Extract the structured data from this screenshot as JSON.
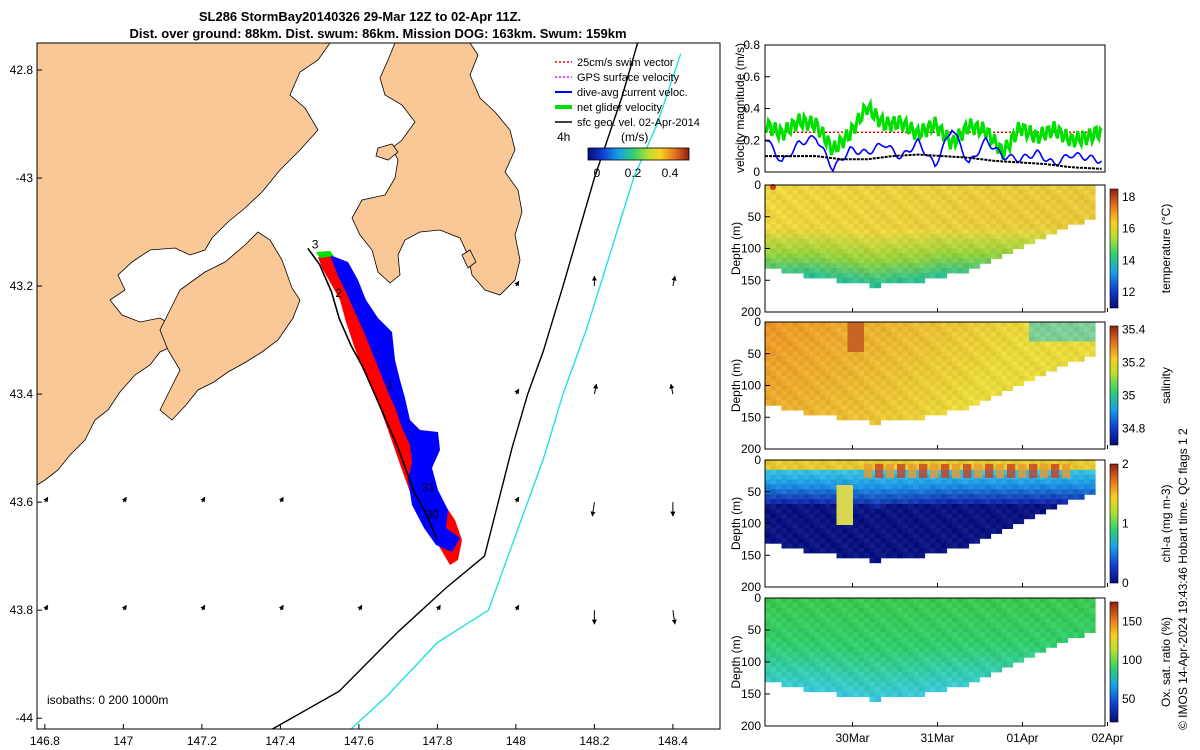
{
  "title": {
    "line1": "SL286 StormBay20140326 29-Mar 12Z to 02-Apr 11Z.",
    "line2": "Dist. over ground: 88km. Dist. swum: 86km. Mission DOG: 163km. Swum: 159km"
  },
  "footer": "© IMOS 14-Apr-2024 19:43:46 Hobart time. QC flags 1  2",
  "colors": {
    "land": "#f9c896",
    "swim": "#ff0000",
    "gps": "#ff00ff",
    "dive": "#0000ff",
    "net": "#00e000",
    "sfc": "#000000",
    "isobath200": "#000000",
    "isobath1000": "#26e0e0"
  },
  "chart_data": [
    {
      "type": "map",
      "xlim": [
        146.78,
        148.52
      ],
      "ylim": [
        -44.02,
        -42.75
      ],
      "x_ticks": [
        146.8,
        147,
        147.2,
        147.4,
        147.6,
        147.8,
        148,
        148.2,
        148.4
      ],
      "x_tick_labels": [
        "146.8",
        "147",
        "147.2",
        "147.4",
        "147.6",
        "147.8",
        "148",
        "148.2",
        "148.4"
      ],
      "y_ticks": [
        -42.8,
        -43,
        -43.2,
        -43.4,
        -43.6,
        -43.8,
        -44
      ],
      "y_tick_labels": [
        "42.8",
        "-43",
        "43.2",
        "43.4",
        "43.6",
        "43.8",
        "-44"
      ],
      "legend": [
        {
          "label": "25cm/s swim vector",
          "color": "#ff0000",
          "style": "dotted-arrow"
        },
        {
          "label": "GPS surface velocity",
          "color": "#ff00ff",
          "style": "dotted-arrow"
        },
        {
          "label": "dive-avg current veloc.",
          "color": "#0000ff",
          "style": "arrow"
        },
        {
          "label": "net glider velocity",
          "color": "#00e000",
          "style": "thick-arrow"
        },
        {
          "label": "sfc geo. vel. 02-Apr-2014",
          "color": "#000000",
          "style": "arrow"
        }
      ],
      "legend_extra": "4h",
      "colorbar": {
        "label": "(m/s)",
        "ticks": [
          "0",
          "0.2",
          "0.4"
        ],
        "range": [
          0,
          0.5
        ]
      },
      "day_labels": [
        {
          "text": "3",
          "lon": 147.48,
          "lat": -43.13
        },
        {
          "text": "2",
          "lon": 147.54,
          "lat": -43.22
        },
        {
          "text": "1",
          "lon": 147.67,
          "lat": -43.39
        },
        {
          "text": "31",
          "lon": 147.76,
          "lat": -43.58
        },
        {
          "text": "30",
          "lon": 147.77,
          "lat": -43.63
        }
      ],
      "isobath_label": "isobaths: 0   200  1000m",
      "track": [
        {
          "lon": 147.47,
          "lat": -43.13
        },
        {
          "lon": 147.5,
          "lat": -43.16
        },
        {
          "lon": 147.53,
          "lat": -43.21
        },
        {
          "lon": 147.55,
          "lat": -43.26
        },
        {
          "lon": 147.58,
          "lat": -43.31
        },
        {
          "lon": 147.61,
          "lat": -43.35
        },
        {
          "lon": 147.64,
          "lat": -43.4
        },
        {
          "lon": 147.67,
          "lat": -43.45
        },
        {
          "lon": 147.7,
          "lat": -43.5
        },
        {
          "lon": 147.72,
          "lat": -43.54
        },
        {
          "lon": 147.74,
          "lat": -43.58
        },
        {
          "lon": 147.77,
          "lat": -43.62
        },
        {
          "lon": 147.8,
          "lat": -43.67
        }
      ],
      "isobath_200": [
        {
          "lon": 147.38,
          "lat": -44.02
        },
        {
          "lon": 147.55,
          "lat": -43.95
        },
        {
          "lon": 147.7,
          "lat": -43.84
        },
        {
          "lon": 147.82,
          "lat": -43.76
        },
        {
          "lon": 147.92,
          "lat": -43.7
        },
        {
          "lon": 147.99,
          "lat": -43.5
        },
        {
          "lon": 148.03,
          "lat": -43.4
        },
        {
          "lon": 148.07,
          "lat": -43.32
        },
        {
          "lon": 148.12,
          "lat": -43.2
        },
        {
          "lon": 148.2,
          "lat": -43.0
        },
        {
          "lon": 148.27,
          "lat": -42.85
        },
        {
          "lon": 148.31,
          "lat": -42.75
        }
      ],
      "isobath_1000": [
        {
          "lon": 147.58,
          "lat": -44.02
        },
        {
          "lon": 147.67,
          "lat": -43.96
        },
        {
          "lon": 147.8,
          "lat": -43.86
        },
        {
          "lon": 147.93,
          "lat": -43.8
        },
        {
          "lon": 148.0,
          "lat": -43.66
        },
        {
          "lon": 148.07,
          "lat": -43.52
        },
        {
          "lon": 148.12,
          "lat": -43.4
        },
        {
          "lon": 148.18,
          "lat": -43.28
        },
        {
          "lon": 148.24,
          "lat": -43.14
        },
        {
          "lon": 148.3,
          "lat": -43.0
        },
        {
          "lon": 148.36,
          "lat": -42.9
        },
        {
          "lon": 148.42,
          "lat": -42.77
        }
      ]
    },
    {
      "type": "line",
      "ylabel": "velocity magnitude (m/s)",
      "ylim": [
        0,
        0.8
      ],
      "y_ticks": [
        "0",
        "0.2",
        "0.4",
        "0.6",
        "0.8"
      ],
      "x_days": [
        29.5,
        33.5
      ],
      "series": [
        {
          "name": "net glider velocity",
          "color": "#00e000",
          "x": [
            29.5,
            29.7,
            29.9,
            30.1,
            30.3,
            30.5,
            30.7,
            30.9,
            31.1,
            31.3,
            31.5,
            31.7,
            31.9,
            32.1,
            32.3,
            32.5,
            32.7,
            32.9,
            33.1,
            33.3,
            33.46
          ],
          "values": [
            0.3,
            0.24,
            0.32,
            0.3,
            0.14,
            0.24,
            0.41,
            0.3,
            0.31,
            0.24,
            0.3,
            0.18,
            0.29,
            0.26,
            0.12,
            0.28,
            0.22,
            0.27,
            0.2,
            0.22,
            0.26
          ]
        },
        {
          "name": "dive-avg current veloc.",
          "color": "#0000ff",
          "x": [
            29.5,
            29.7,
            29.9,
            30.1,
            30.3,
            30.5,
            30.7,
            30.9,
            31.1,
            31.3,
            31.5,
            31.7,
            31.9,
            32.1,
            32.3,
            32.5,
            32.7,
            32.9,
            33.1,
            33.3,
            33.46
          ],
          "values": [
            0.22,
            0.06,
            0.18,
            0.22,
            0.02,
            0.14,
            0.12,
            0.18,
            0.09,
            0.19,
            0.04,
            0.28,
            0.05,
            0.2,
            0.1,
            0.08,
            0.12,
            0.05,
            0.11,
            0.09,
            0.07
          ]
        },
        {
          "name": "25cm/s swim vector",
          "color": "#ff0000",
          "x": [
            29.5,
            33.46
          ],
          "values": [
            0.25,
            0.25
          ]
        },
        {
          "name": "sfc geo. vel.",
          "color": "#000000",
          "x": [
            29.5,
            29.8,
            30.1,
            30.4,
            30.7,
            31.0,
            31.3,
            31.6,
            31.9,
            32.2,
            32.5,
            32.8,
            33.1,
            33.46
          ],
          "values": [
            0.1,
            0.1,
            0.1,
            0.08,
            0.08,
            0.1,
            0.11,
            0.1,
            0.09,
            0.07,
            0.06,
            0.05,
            0.03,
            0.02
          ]
        }
      ]
    },
    {
      "type": "heatmap",
      "variable": "temperature",
      "ylabel": "Depth (m)",
      "cbar_label": "temperature (°C)",
      "cbar_range": [
        11,
        18.5
      ],
      "cbar_ticks": [
        "12",
        "14",
        "16",
        "18"
      ],
      "y_ticks": [
        "0",
        "50",
        "100",
        "150",
        "200"
      ],
      "bottom_profile": [
        125,
        135,
        140,
        145,
        150,
        155,
        150,
        148,
        140,
        135,
        120,
        105,
        90,
        75,
        60,
        50
      ]
    },
    {
      "type": "heatmap",
      "variable": "salinity",
      "ylabel": "Depth (m)",
      "cbar_label": "salinity",
      "cbar_range": [
        34.7,
        35.42
      ],
      "cbar_ticks": [
        "34.8",
        "35",
        "35.2",
        "35.4"
      ],
      "y_ticks": [
        "0",
        "50",
        "100",
        "150",
        "200"
      ]
    },
    {
      "type": "heatmap",
      "variable": "chl-a",
      "ylabel": "Depth (m)",
      "cbar_label": "chl-a (mg m-3)",
      "cbar_range": [
        0,
        2
      ],
      "cbar_ticks": [
        "0",
        "1",
        "2"
      ],
      "y_ticks": [
        "0",
        "50",
        "100",
        "150",
        "200"
      ]
    },
    {
      "type": "heatmap",
      "variable": "oxygen",
      "ylabel": "Depth (m)",
      "cbar_label": "Ox. sat. ratio (%)",
      "cbar_range": [
        20,
        175
      ],
      "cbar_ticks": [
        "50",
        "100",
        "150"
      ],
      "y_ticks": [
        "0",
        "50",
        "100",
        "150",
        "200"
      ],
      "x_tick_labels": [
        "30Mar",
        "31Mar",
        "01Apr",
        "02Apr"
      ]
    }
  ]
}
